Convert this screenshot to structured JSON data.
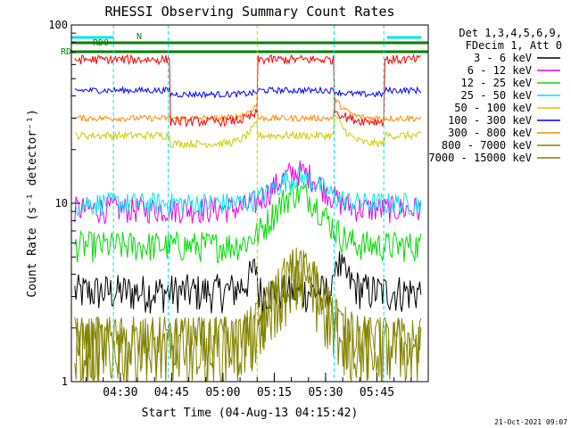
{
  "chart_data": {
    "type": "line",
    "title": "RHESSI Observing Summary Count Rates",
    "ylabel": "Count Rate (s⁻¹ detector⁻¹)",
    "xlabel": "Start Time (04-Aug-13 04:15:42)",
    "x_ticks": [
      "04:30",
      "04:45",
      "05:00",
      "05:15",
      "05:30",
      "05:45"
    ],
    "x_tick_minutes": [
      30,
      45,
      60,
      75,
      90,
      105
    ],
    "xlim_minutes": [
      15.7,
      120
    ],
    "yscale": "log",
    "ylim": [
      1,
      100
    ],
    "y_ticks": [
      "1",
      "10",
      "100"
    ],
    "y_tick_values": [
      1,
      10,
      100
    ],
    "legend_header": [
      "Det 1,3,4,5,6,9,",
      "FDecim 1, Att 0"
    ],
    "legend_position": "right",
    "footer_date": "21-Oct-2021 09:07",
    "flag_labels": {
      "rd0": "RD0",
      "rd_short": "RD",
      "n": "N"
    },
    "gap_minutes": [
      [
        44.5,
        70
      ],
      [
        92.5,
        107
      ]
    ],
    "series": [
      {
        "name": "3 - 6 keV",
        "color": "#000000",
        "base": 3.2,
        "peak": 11
      },
      {
        "name": "6 - 12 keV",
        "color": "#ee00ee",
        "base": 9.3,
        "peak": 15
      },
      {
        "name": "12 - 25 keV",
        "color": "#00dd00",
        "base": 5.8,
        "peak": 11.5
      },
      {
        "name": "25 - 50 keV",
        "color": "#00e5e5",
        "base": 10,
        "peak": 14
      },
      {
        "name": "50 - 100 keV",
        "color": "#cccc00",
        "base": 24,
        "peak": 65
      },
      {
        "name": "100 - 300 keV",
        "color": "#0000ff",
        "base": 43,
        "peak": 65
      },
      {
        "name": "300 - 800 keV",
        "color": "#ff8800",
        "base": 30,
        "peak": 65
      },
      {
        "name": "800 - 7000 keV",
        "color": "#888800",
        "base": 1.6,
        "peak": 4
      },
      {
        "name": "7000 - 15000 keV",
        "color": "#808000",
        "base": 1.6,
        "peak": 4
      }
    ],
    "series_red": {
      "color": "#ff0000",
      "base": 64,
      "peak": 48
    }
  }
}
